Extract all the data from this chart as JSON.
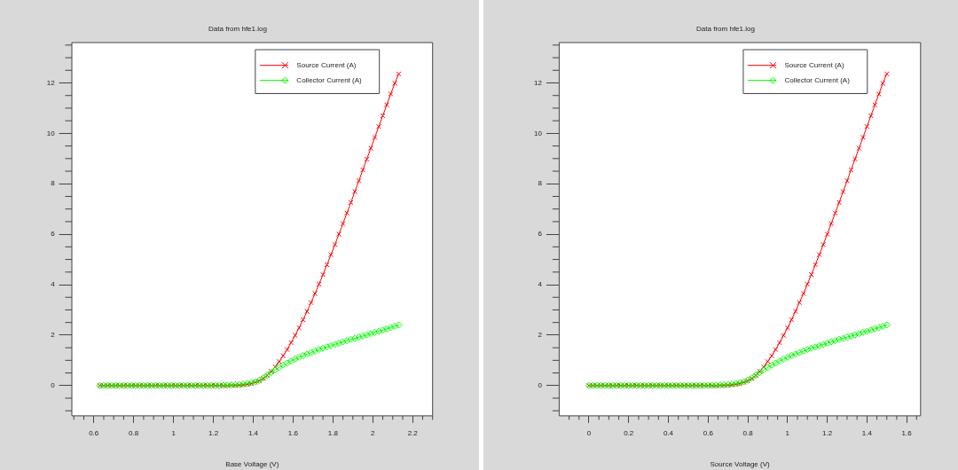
{
  "chart_data": [
    {
      "type": "line",
      "title": "Data from hfe1.log",
      "xlabel": "Base Voltage (V)",
      "legend": "top right",
      "x": [
        0.63,
        0.65,
        0.67,
        0.69,
        0.71,
        0.73,
        0.75,
        0.77,
        0.79,
        0.81,
        0.83,
        0.85,
        0.87,
        0.89,
        0.91,
        0.93,
        0.95,
        0.97,
        0.99,
        1.01,
        1.03,
        1.05,
        1.07,
        1.09,
        1.11,
        1.13,
        1.15,
        1.17,
        1.19,
        1.21,
        1.23,
        1.25,
        1.27,
        1.29,
        1.31,
        1.33,
        1.35,
        1.37,
        1.39,
        1.41,
        1.43,
        1.45,
        1.47,
        1.49,
        1.51,
        1.53,
        1.55,
        1.57,
        1.59,
        1.61,
        1.63,
        1.65,
        1.67,
        1.69,
        1.71,
        1.73,
        1.75,
        1.77,
        1.79,
        1.81,
        1.83,
        1.85,
        1.87,
        1.89,
        1.91,
        1.93,
        1.95,
        1.97,
        1.99,
        2.01,
        2.03,
        2.05,
        2.07,
        2.09,
        2.11,
        2.13
      ],
      "series": [
        {
          "name": "Source Current (A)",
          "color": "#ff0000",
          "marker": "cross",
          "values": [
            0,
            0,
            0,
            0,
            0,
            0,
            0,
            0,
            0,
            0,
            0,
            0,
            0,
            0,
            0,
            0,
            0,
            0,
            0,
            0,
            0,
            0,
            0,
            0,
            0,
            0,
            0,
            0,
            0,
            0,
            0,
            0,
            0,
            0.01,
            0.01,
            0.02,
            0.03,
            0.05,
            0.08,
            0.13,
            0.19,
            0.28,
            0.4,
            0.56,
            0.74,
            0.95,
            1.18,
            1.43,
            1.7,
            1.99,
            2.29,
            2.61,
            2.94,
            3.29,
            3.65,
            4.02,
            4.4,
            4.79,
            5.19,
            5.59,
            6,
            6.42,
            6.84,
            7.26,
            7.69,
            8.12,
            8.55,
            8.98,
            9.41,
            9.84,
            10.27,
            10.7,
            11.13,
            11.56,
            11.98,
            12.36
          ]
        },
        {
          "name": "Collector Current (A)",
          "color": "#00ff00",
          "marker": "diamond",
          "values": [
            0,
            0,
            0,
            0,
            0,
            0,
            0,
            0,
            0,
            0,
            0,
            0,
            0,
            0,
            0,
            0,
            0,
            0,
            0,
            0,
            0,
            0,
            0,
            0,
            0,
            0,
            0,
            0,
            0,
            0,
            0,
            0.01,
            0.01,
            0.02,
            0.03,
            0.04,
            0.06,
            0.08,
            0.11,
            0.15,
            0.21,
            0.3,
            0.41,
            0.52,
            0.62,
            0.72,
            0.81,
            0.89,
            0.97,
            1.05,
            1.12,
            1.19,
            1.25,
            1.31,
            1.37,
            1.43,
            1.48,
            1.53,
            1.58,
            1.63,
            1.68,
            1.73,
            1.78,
            1.83,
            1.87,
            1.92,
            1.96,
            2.01,
            2.06,
            2.11,
            2.15,
            2.2,
            2.25,
            2.3,
            2.35,
            2.4
          ]
        }
      ],
      "xlim": [
        0.49,
        2.3
      ],
      "xticks": [
        {
          "value": 0.5,
          "label": null
        },
        {
          "value": 0.55,
          "label": null
        },
        0.6,
        {
          "value": 0.65,
          "label": null
        },
        {
          "value": 0.7,
          "label": null
        },
        {
          "value": 0.75,
          "label": null
        },
        0.8,
        {
          "value": 0.85,
          "label": null
        },
        {
          "value": 0.9,
          "label": null
        },
        {
          "value": 0.95,
          "label": null
        },
        1,
        {
          "value": 1.05,
          "label": null
        },
        {
          "value": 1.1,
          "label": null
        },
        {
          "value": 1.15,
          "label": null
        },
        1.2,
        {
          "value": 1.25,
          "label": null
        },
        {
          "value": 1.3,
          "label": null
        },
        {
          "value": 1.35,
          "label": null
        },
        1.4,
        {
          "value": 1.45,
          "label": null
        },
        {
          "value": 1.5,
          "label": null
        },
        {
          "value": 1.55,
          "label": null
        },
        1.6,
        {
          "value": 1.65,
          "label": null
        },
        {
          "value": 1.7,
          "label": null
        },
        {
          "value": 1.75,
          "label": null
        },
        1.8,
        {
          "value": 1.85,
          "label": null
        },
        {
          "value": 1.9,
          "label": null
        },
        {
          "value": 1.95,
          "label": null
        },
        2,
        {
          "value": 2.05,
          "label": null
        },
        {
          "value": 2.1,
          "label": null
        },
        {
          "value": 2.15,
          "label": null
        },
        2.2,
        {
          "value": 2.25,
          "label": null
        },
        {
          "value": 2.3,
          "label": null
        }
      ],
      "ylim": [
        -1.2,
        13.6
      ],
      "yticks": [
        {
          "value": -1,
          "label": null
        },
        {
          "value": -0.5,
          "label": null
        },
        0,
        {
          "value": 0.5,
          "label": null
        },
        {
          "value": 1,
          "label": null
        },
        {
          "value": 1.5,
          "label": null
        },
        2,
        {
          "value": 2.5,
          "label": null
        },
        {
          "value": 3,
          "label": null
        },
        {
          "value": 3.5,
          "label": null
        },
        4,
        {
          "value": 4.5,
          "label": null
        },
        {
          "value": 5,
          "label": null
        },
        {
          "value": 5.5,
          "label": null
        },
        6,
        {
          "value": 6.5,
          "label": null
        },
        {
          "value": 7,
          "label": null
        },
        {
          "value": 7.5,
          "label": null
        },
        8,
        {
          "value": 8.5,
          "label": null
        },
        {
          "value": 9,
          "label": null
        },
        {
          "value": 9.5,
          "label": null
        },
        10,
        {
          "value": 10.5,
          "label": null
        },
        {
          "value": 11,
          "label": null
        },
        {
          "value": 11.5,
          "label": null
        },
        12,
        {
          "value": 12.5,
          "label": null
        },
        {
          "value": 13,
          "label": null
        },
        {
          "value": 13.5,
          "label": null
        }
      ]
    },
    {
      "type": "line",
      "title": "Data from hfe1.log",
      "xlabel": "Source Voltage (V)",
      "legend": "top right",
      "x": [
        0,
        0.02,
        0.04,
        0.06,
        0.08,
        0.1,
        0.12,
        0.14,
        0.16,
        0.18,
        0.2,
        0.22,
        0.24,
        0.26,
        0.28,
        0.3,
        0.32,
        0.34,
        0.36,
        0.38,
        0.4,
        0.42,
        0.44,
        0.46,
        0.48,
        0.5,
        0.52,
        0.54,
        0.56,
        0.58,
        0.6,
        0.62,
        0.64,
        0.66,
        0.68,
        0.7,
        0.72,
        0.74,
        0.76,
        0.78,
        0.8,
        0.82,
        0.84,
        0.86,
        0.88,
        0.9,
        0.92,
        0.94,
        0.96,
        0.98,
        1,
        1.02,
        1.04,
        1.06,
        1.08,
        1.1,
        1.12,
        1.14,
        1.16,
        1.18,
        1.2,
        1.22,
        1.24,
        1.26,
        1.28,
        1.3,
        1.32,
        1.34,
        1.36,
        1.38,
        1.4,
        1.42,
        1.44,
        1.46,
        1.48,
        1.5
      ],
      "series": [
        {
          "name": "Source Current (A)",
          "color": "#ff0000",
          "marker": "cross",
          "values": [
            0,
            0,
            0,
            0,
            0,
            0,
            0,
            0,
            0,
            0,
            0,
            0,
            0,
            0,
            0,
            0,
            0,
            0,
            0,
            0,
            0,
            0,
            0,
            0,
            0,
            0,
            0,
            0,
            0,
            0,
            0,
            0,
            0,
            0.01,
            0.01,
            0.02,
            0.03,
            0.05,
            0.08,
            0.13,
            0.19,
            0.28,
            0.4,
            0.56,
            0.74,
            0.95,
            1.18,
            1.43,
            1.7,
            1.99,
            2.29,
            2.61,
            2.94,
            3.29,
            3.65,
            4.02,
            4.4,
            4.79,
            5.19,
            5.59,
            6,
            6.42,
            6.84,
            7.26,
            7.69,
            8.12,
            8.55,
            8.98,
            9.41,
            9.84,
            10.27,
            10.7,
            11.13,
            11.56,
            11.98,
            12.36
          ]
        },
        {
          "name": "Collector Current (A)",
          "color": "#00ff00",
          "marker": "diamond",
          "values": [
            0,
            0,
            0,
            0,
            0,
            0,
            0,
            0,
            0,
            0,
            0,
            0,
            0,
            0,
            0,
            0,
            0,
            0,
            0,
            0,
            0,
            0,
            0,
            0,
            0,
            0,
            0,
            0,
            0,
            0,
            0,
            0.01,
            0.01,
            0.02,
            0.03,
            0.04,
            0.06,
            0.08,
            0.11,
            0.15,
            0.21,
            0.3,
            0.41,
            0.52,
            0.62,
            0.72,
            0.81,
            0.89,
            0.97,
            1.05,
            1.12,
            1.19,
            1.25,
            1.31,
            1.37,
            1.43,
            1.48,
            1.53,
            1.58,
            1.63,
            1.68,
            1.73,
            1.78,
            1.83,
            1.87,
            1.92,
            1.96,
            2.01,
            2.06,
            2.11,
            2.15,
            2.2,
            2.25,
            2.3,
            2.35,
            2.4
          ]
        }
      ],
      "xlim": [
        -0.15,
        1.67
      ],
      "xticks": [
        {
          "value": -0.1,
          "label": null
        },
        {
          "value": -0.05,
          "label": null
        },
        0,
        {
          "value": 0.05,
          "label": null
        },
        {
          "value": 0.1,
          "label": null
        },
        {
          "value": 0.15,
          "label": null
        },
        0.2,
        {
          "value": 0.25,
          "label": null
        },
        {
          "value": 0.3,
          "label": null
        },
        {
          "value": 0.35,
          "label": null
        },
        0.4,
        {
          "value": 0.45,
          "label": null
        },
        {
          "value": 0.5,
          "label": null
        },
        {
          "value": 0.55,
          "label": null
        },
        0.6,
        {
          "value": 0.65,
          "label": null
        },
        {
          "value": 0.7,
          "label": null
        },
        {
          "value": 0.75,
          "label": null
        },
        0.8,
        {
          "value": 0.85,
          "label": null
        },
        {
          "value": 0.9,
          "label": null
        },
        {
          "value": 0.95,
          "label": null
        },
        1,
        {
          "value": 1.05,
          "label": null
        },
        {
          "value": 1.1,
          "label": null
        },
        {
          "value": 1.15,
          "label": null
        },
        1.2,
        {
          "value": 1.25,
          "label": null
        },
        {
          "value": 1.3,
          "label": null
        },
        {
          "value": 1.35,
          "label": null
        },
        1.4,
        {
          "value": 1.45,
          "label": null
        },
        {
          "value": 1.5,
          "label": null
        },
        {
          "value": 1.55,
          "label": null
        },
        1.6,
        {
          "value": 1.65,
          "label": null
        }
      ],
      "ylim": [
        -1.2,
        13.6
      ],
      "yticks": [
        {
          "value": -1,
          "label": null
        },
        {
          "value": -0.5,
          "label": null
        },
        0,
        {
          "value": 0.5,
          "label": null
        },
        {
          "value": 1,
          "label": null
        },
        {
          "value": 1.5,
          "label": null
        },
        2,
        {
          "value": 2.5,
          "label": null
        },
        {
          "value": 3,
          "label": null
        },
        {
          "value": 3.5,
          "label": null
        },
        4,
        {
          "value": 4.5,
          "label": null
        },
        {
          "value": 5,
          "label": null
        },
        {
          "value": 5.5,
          "label": null
        },
        6,
        {
          "value": 6.5,
          "label": null
        },
        {
          "value": 7,
          "label": null
        },
        {
          "value": 7.5,
          "label": null
        },
        8,
        {
          "value": 8.5,
          "label": null
        },
        {
          "value": 9,
          "label": null
        },
        {
          "value": 9.5,
          "label": null
        },
        10,
        {
          "value": 10.5,
          "label": null
        },
        {
          "value": 11,
          "label": null
        },
        {
          "value": 11.5,
          "label": null
        },
        12,
        {
          "value": 12.5,
          "label": null
        },
        {
          "value": 13,
          "label": null
        },
        {
          "value": 13.5,
          "label": null
        }
      ]
    }
  ]
}
